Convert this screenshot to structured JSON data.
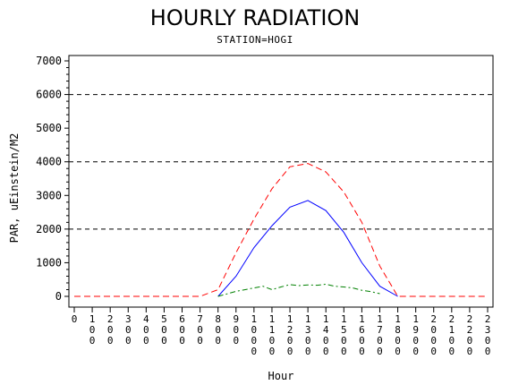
{
  "chart_data": {
    "type": "line",
    "title": "HOURLY RADIATION",
    "subtitle": "STATION=HOGI",
    "xlabel": "Hour",
    "ylabel": "PAR, uEinstein/M2",
    "xlim": [
      0,
      23
    ],
    "ylim": [
      0,
      7000
    ],
    "y_ticks": [
      0,
      1000,
      2000,
      3000,
      4000,
      5000,
      6000,
      7000
    ],
    "y_tick_labels": [
      "0",
      "1000",
      "2000",
      "3000",
      "4000",
      "5000",
      "6000",
      "7000"
    ],
    "x_tick_labels": [
      "0",
      "100",
      "200",
      "300",
      "400",
      "500",
      "600",
      "700",
      "800",
      "900",
      "1000",
      "1100",
      "1200",
      "1300",
      "1400",
      "1500",
      "1600",
      "1700",
      "1800",
      "1900",
      "2000",
      "2100",
      "2200",
      "2300"
    ],
    "reference_lines": [
      2000,
      4000,
      6000
    ],
    "grid": false,
    "series": [
      {
        "color": "#ff0000",
        "dash": "dashed",
        "x": [
          0,
          1,
          2,
          3,
          4,
          5,
          6,
          7,
          8,
          9,
          10,
          11,
          12,
          13,
          14,
          15,
          16,
          17,
          18,
          19,
          20,
          21,
          22,
          23
        ],
        "values": [
          0,
          0,
          0,
          0,
          0,
          0,
          0,
          0,
          200,
          1300,
          2300,
          3200,
          3850,
          3950,
          3700,
          3100,
          2200,
          900,
          0,
          0,
          0,
          0,
          0,
          0
        ]
      },
      {
        "color": "#0000ff",
        "dash": "solid",
        "x": [
          8,
          9,
          10,
          11,
          12,
          13,
          14,
          15,
          16,
          17,
          18
        ],
        "values": [
          0,
          600,
          1450,
          2100,
          2650,
          2850,
          2550,
          1900,
          1000,
          300,
          0
        ]
      },
      {
        "color": "#008000",
        "dash": "dashdot",
        "x": [
          8,
          9,
          10,
          10.5,
          11,
          11.5,
          12,
          12.5,
          13,
          13.5,
          14,
          14.5,
          15,
          15.5,
          16,
          16.5,
          17
        ],
        "values": [
          0,
          150,
          250,
          300,
          200,
          280,
          350,
          320,
          340,
          330,
          360,
          300,
          280,
          250,
          180,
          140,
          80
        ]
      }
    ]
  }
}
